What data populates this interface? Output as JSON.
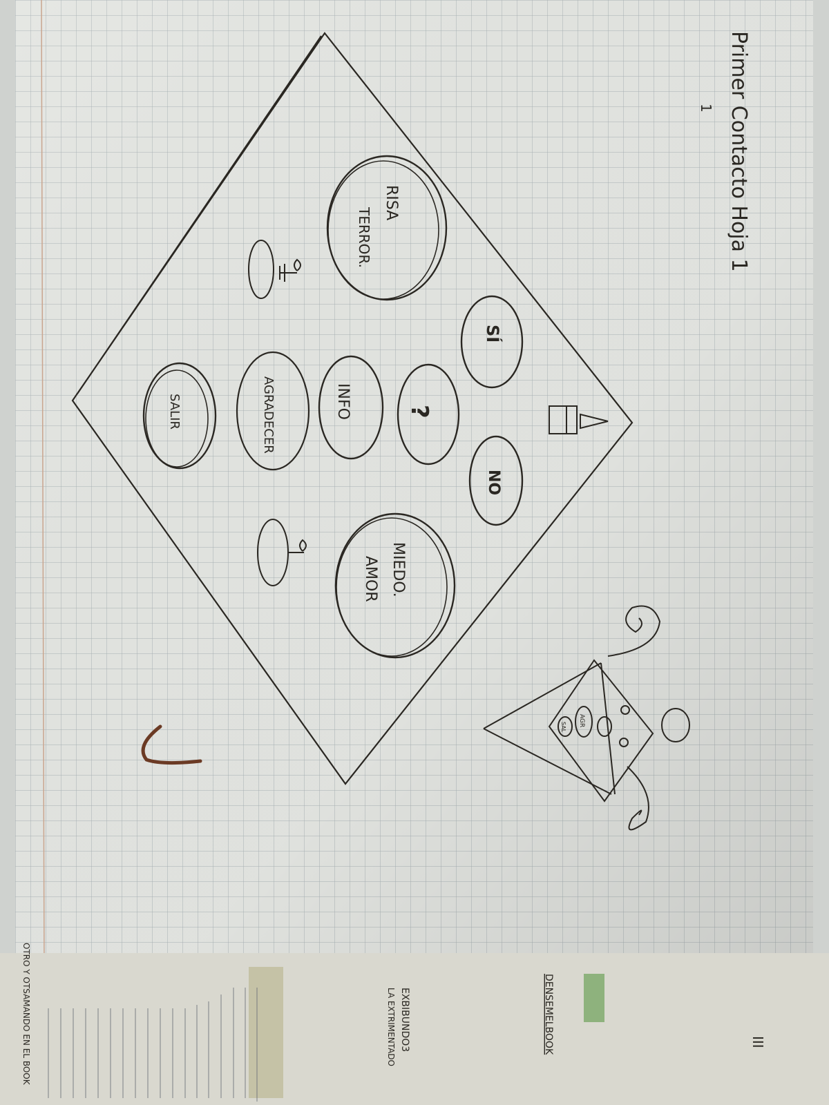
{
  "sheet": {
    "title": "Primer Contacto Hoja 1",
    "corner_mark": "1"
  },
  "buttons": {
    "risa_terror": [
      "RISA",
      "TERROR."
    ],
    "si": "SÍ",
    "question": "?",
    "no": "NO",
    "info": "INFO",
    "agradecer": "AGRADECER",
    "salir": "SALIR",
    "miedo_amor": [
      "MIEDO.",
      "AMOR"
    ]
  },
  "mini_diagram": {
    "labels": [
      "AGR",
      "SAL"
    ]
  },
  "bottom_notes": {
    "line1": "DENSEMELBOOK",
    "line2": "EXBIBUNDO3",
    "line3": "LA EXTRIMENTADO",
    "strip": "OTRO Y OTSAMANDO EN EL BOOK",
    "page_mark": "III"
  }
}
